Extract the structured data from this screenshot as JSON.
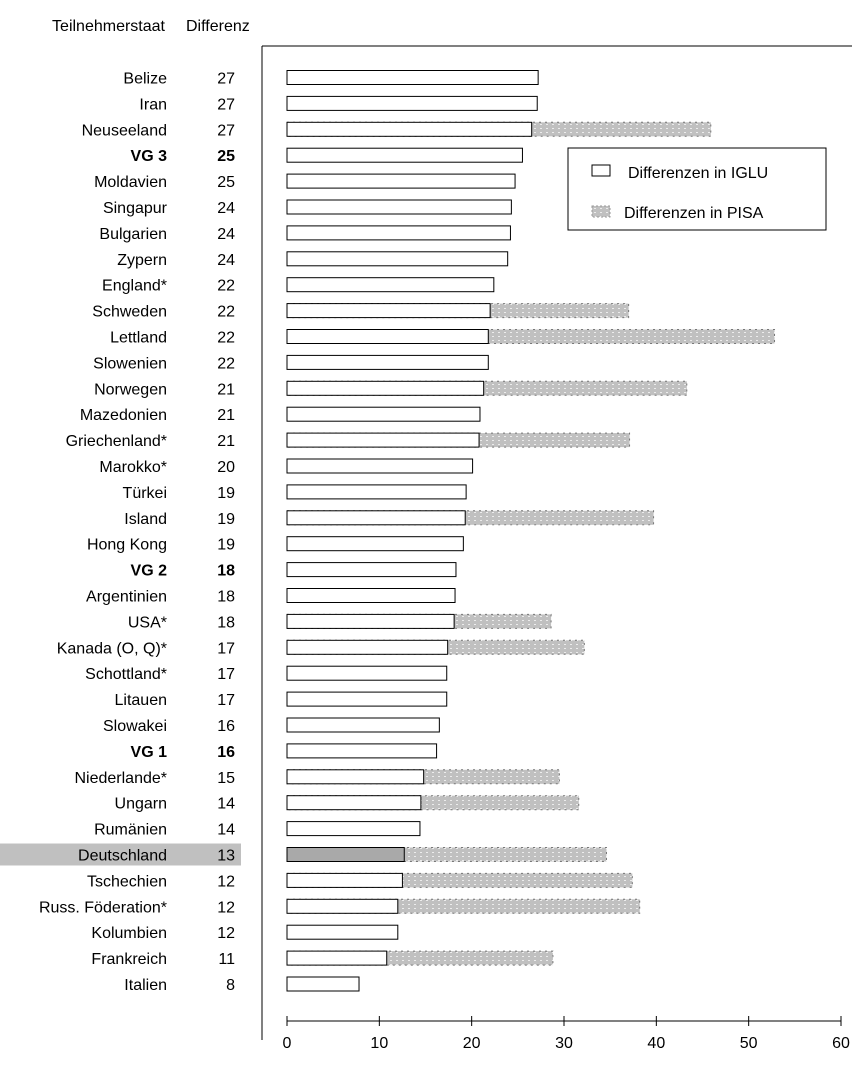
{
  "headers": {
    "country": "Teilnehmerstaat",
    "difference": "Differenz"
  },
  "legend": {
    "iglu": "Differenzen in IGLU",
    "pisa": "Differenzen in PISA"
  },
  "colors": {
    "iglu_fill": "#ffffff",
    "pisa_fill": "#c0c0c0",
    "highlight_bg": "#c0c0c0",
    "highlight_bar": "#a9a9a9",
    "stroke": "#000000"
  },
  "chart_data": {
    "type": "bar",
    "orientation": "horizontal",
    "xlim": [
      0,
      60
    ],
    "xticks": [
      "0",
      "10",
      "20",
      "30",
      "40",
      "50",
      "60"
    ],
    "grid": false,
    "legend_position": "top-right",
    "highlighted_category": "Deutschland",
    "rows": [
      {
        "country": "Belize",
        "diff": "27",
        "iglu": 27.2,
        "pisa": null,
        "bold": false
      },
      {
        "country": "Iran",
        "diff": "27",
        "iglu": 27.1,
        "pisa": null,
        "bold": false
      },
      {
        "country": "Neuseeland",
        "diff": "27",
        "iglu": 26.5,
        "pisa": 45.9,
        "bold": false
      },
      {
        "country": "VG 3",
        "diff": "25",
        "iglu": 25.5,
        "pisa": null,
        "bold": true
      },
      {
        "country": "Moldavien",
        "diff": "25",
        "iglu": 24.7,
        "pisa": null,
        "bold": false
      },
      {
        "country": "Singapur",
        "diff": "24",
        "iglu": 24.3,
        "pisa": null,
        "bold": false
      },
      {
        "country": "Bulgarien",
        "diff": "24",
        "iglu": 24.2,
        "pisa": null,
        "bold": false
      },
      {
        "country": "Zypern",
        "diff": "24",
        "iglu": 23.9,
        "pisa": null,
        "bold": false
      },
      {
        "country": "England*",
        "diff": "22",
        "iglu": 22.4,
        "pisa": null,
        "bold": false
      },
      {
        "country": "Schweden",
        "diff": "22",
        "iglu": 22.0,
        "pisa": 37.0,
        "bold": false
      },
      {
        "country": "Lettland",
        "diff": "22",
        "iglu": 21.8,
        "pisa": 52.8,
        "bold": false
      },
      {
        "country": "Slowenien",
        "diff": "22",
        "iglu": 21.8,
        "pisa": null,
        "bold": false
      },
      {
        "country": "Norwegen",
        "diff": "21",
        "iglu": 21.3,
        "pisa": 43.3,
        "bold": false
      },
      {
        "country": "Mazedonien",
        "diff": "21",
        "iglu": 20.9,
        "pisa": null,
        "bold": false
      },
      {
        "country": "Griechenland*",
        "diff": "21",
        "iglu": 20.8,
        "pisa": 37.1,
        "bold": false
      },
      {
        "country": "Marokko*",
        "diff": "20",
        "iglu": 20.1,
        "pisa": null,
        "bold": false
      },
      {
        "country": "Türkei",
        "diff": "19",
        "iglu": 19.4,
        "pisa": null,
        "bold": false
      },
      {
        "country": "Island",
        "diff": "19",
        "iglu": 19.3,
        "pisa": 39.7,
        "bold": false
      },
      {
        "country": "Hong Kong",
        "diff": "19",
        "iglu": 19.1,
        "pisa": null,
        "bold": false
      },
      {
        "country": "VG 2",
        "diff": "18",
        "iglu": 18.3,
        "pisa": null,
        "bold": true
      },
      {
        "country": "Argentinien",
        "diff": "18",
        "iglu": 18.2,
        "pisa": null,
        "bold": false
      },
      {
        "country": "USA*",
        "diff": "18",
        "iglu": 18.1,
        "pisa": 28.6,
        "bold": false
      },
      {
        "country": "Kanada (O, Q)*",
        "diff": "17",
        "iglu": 17.4,
        "pisa": 32.2,
        "bold": false
      },
      {
        "country": "Schottland*",
        "diff": "17",
        "iglu": 17.3,
        "pisa": null,
        "bold": false
      },
      {
        "country": "Litauen",
        "diff": "17",
        "iglu": 17.3,
        "pisa": null,
        "bold": false
      },
      {
        "country": "Slowakei",
        "diff": "16",
        "iglu": 16.5,
        "pisa": null,
        "bold": false
      },
      {
        "country": "VG 1",
        "diff": "16",
        "iglu": 16.2,
        "pisa": null,
        "bold": true
      },
      {
        "country": "Niederlande*",
        "diff": "15",
        "iglu": 14.8,
        "pisa": 29.5,
        "bold": false
      },
      {
        "country": "Ungarn",
        "diff": "14",
        "iglu": 14.5,
        "pisa": 31.6,
        "bold": false
      },
      {
        "country": "Rumänien",
        "diff": "14",
        "iglu": 14.4,
        "pisa": null,
        "bold": false
      },
      {
        "country": "Deutschland",
        "diff": "13",
        "iglu": 12.7,
        "pisa": 34.6,
        "bold": false
      },
      {
        "country": "Tschechien",
        "diff": "12",
        "iglu": 12.5,
        "pisa": 37.4,
        "bold": false
      },
      {
        "country": "Russ. Föderation*",
        "diff": "12",
        "iglu": 12.0,
        "pisa": 38.2,
        "bold": false
      },
      {
        "country": "Kolumbien",
        "diff": "12",
        "iglu": 12.0,
        "pisa": null,
        "bold": false
      },
      {
        "country": "Frankreich",
        "diff": "11",
        "iglu": 10.8,
        "pisa": 28.8,
        "bold": false
      },
      {
        "country": "Italien",
        "diff": "8",
        "iglu": 7.8,
        "pisa": null,
        "bold": false
      }
    ]
  }
}
